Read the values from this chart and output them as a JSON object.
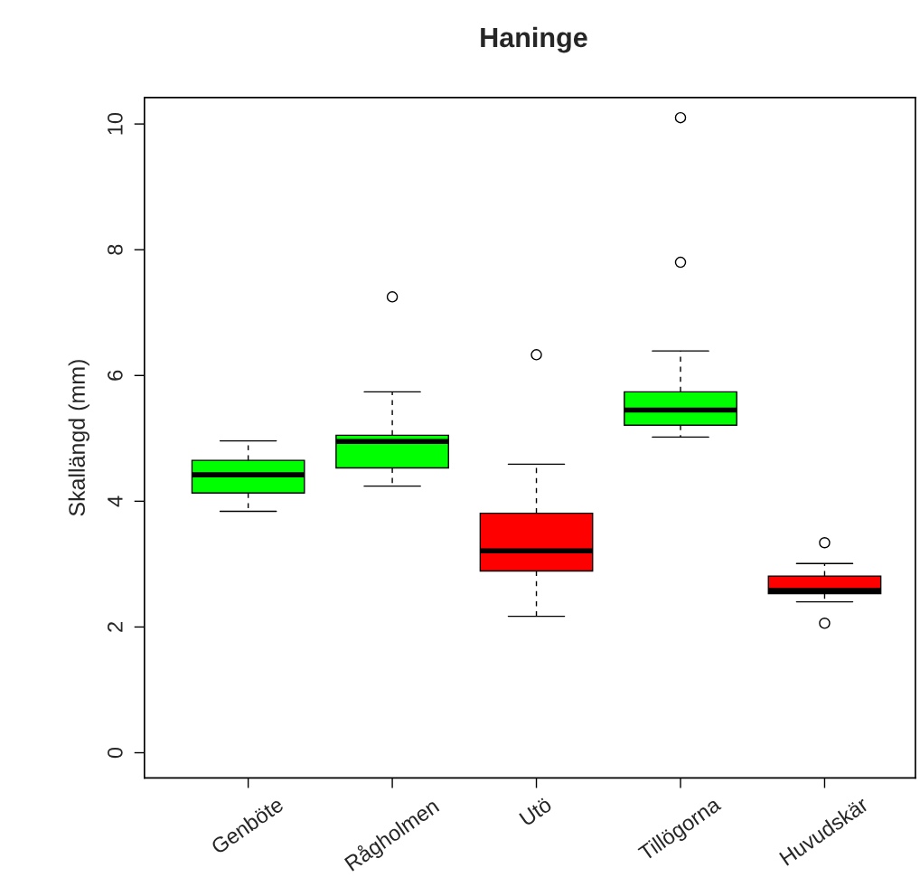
{
  "chart_data": {
    "type": "box",
    "title": "Haninge",
    "ylabel": "Skallängd (mm)",
    "categories": [
      "Genböte",
      "Rågholmen",
      "Utö",
      "Tillögorna",
      "Huvudskär"
    ],
    "colors": [
      "#00ff00",
      "#00ff00",
      "#ff0000",
      "#00ff00",
      "#ff0000"
    ],
    "boxes": [
      {
        "low": 3.84,
        "q1": 4.13,
        "median": 4.42,
        "q3": 4.65,
        "high": 4.96
      },
      {
        "low": 4.24,
        "q1": 4.53,
        "median": 4.95,
        "q3": 5.05,
        "high": 5.74,
        "outliers": [
          7.25
        ]
      },
      {
        "low": 2.17,
        "q1": 2.89,
        "median": 3.21,
        "q3": 3.81,
        "high": 4.59,
        "outliers": [
          6.33
        ]
      },
      {
        "low": 5.02,
        "q1": 5.21,
        "median": 5.45,
        "q3": 5.74,
        "high": 6.39,
        "outliers": [
          7.8,
          10.1
        ]
      },
      {
        "low": 2.4,
        "q1": 2.53,
        "median": 2.58,
        "q3": 2.81,
        "high": 3.01,
        "outliers": [
          3.34,
          2.06
        ]
      }
    ],
    "ylim": [
      -0.4,
      10.42
    ],
    "yticks": [
      0,
      2,
      4,
      6,
      8,
      10
    ]
  }
}
